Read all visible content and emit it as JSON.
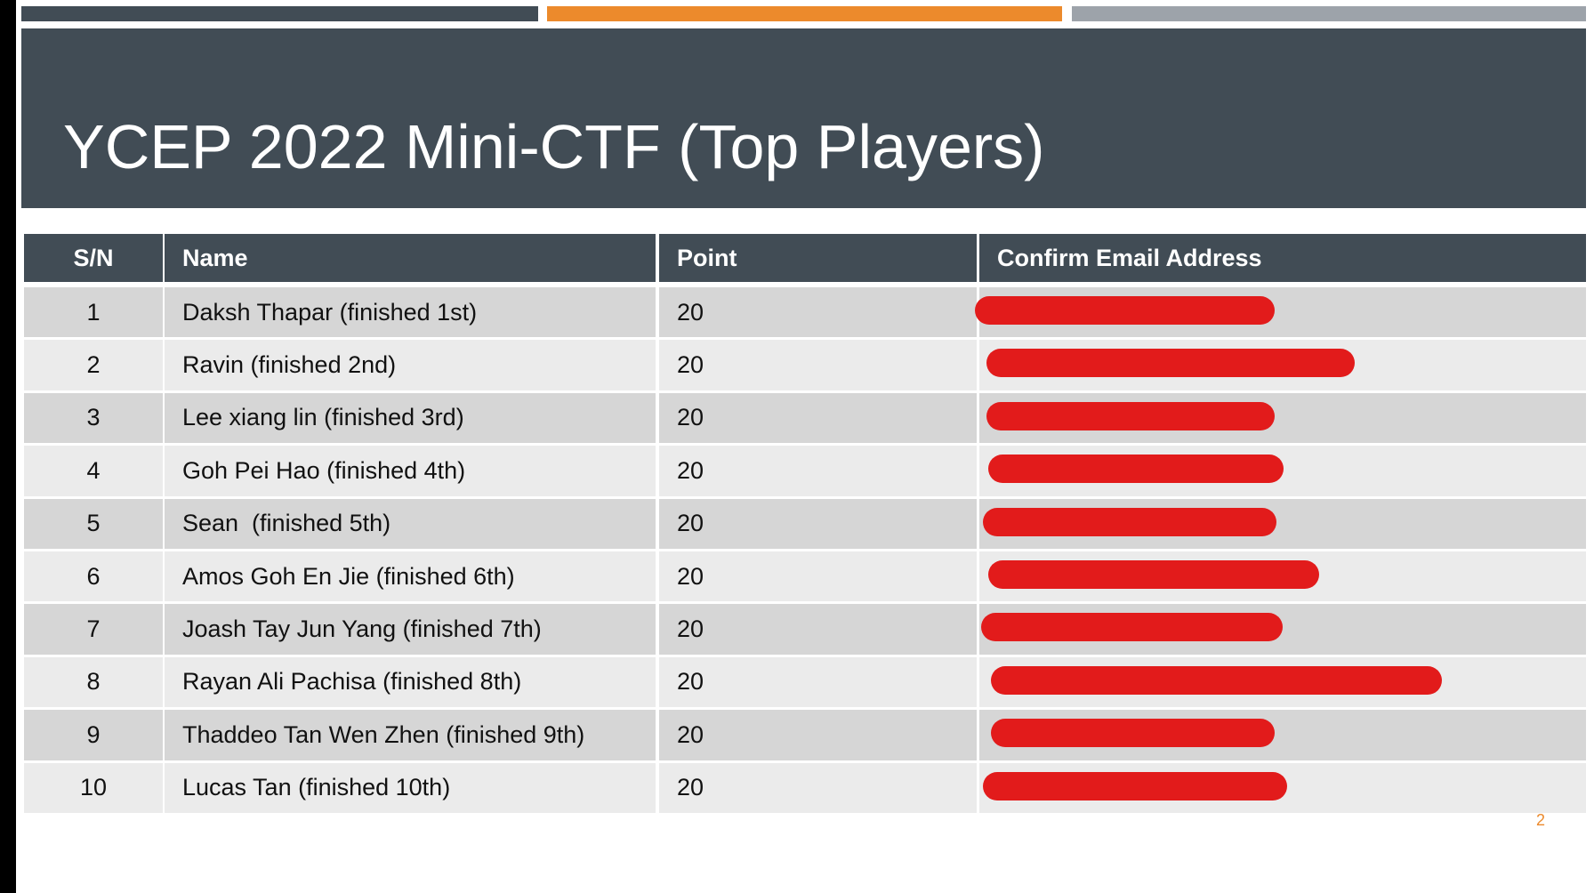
{
  "header": {
    "title": "YCEP 2022 Mini-CTF (Top Players)"
  },
  "table": {
    "columns": [
      "S/N",
      "Name",
      "Point",
      "Confirm Email Address"
    ],
    "rows": [
      [
        "1",
        "Daksh Thapar (finished 1st)",
        "20"
      ],
      [
        "2",
        "Ravin (finished 2nd)",
        "20"
      ],
      [
        "3",
        "Lee xiang lin (finished 3rd)",
        "20"
      ],
      [
        "4",
        "Goh Pei Hao (finished 4th)",
        "20"
      ],
      [
        "5",
        "Sean  (finished 5th)",
        "20"
      ],
      [
        "6",
        "Amos Goh En Jie (finished 6th)",
        "20"
      ],
      [
        "7",
        "Joash Tay Jun Yang (finished 7th)",
        "20"
      ],
      [
        "8",
        "Rayan Ali Pachisa (finished 8th)",
        "20"
      ],
      [
        "9",
        "Thaddeo Tan Wen Zhen (finished 9th)",
        "20"
      ],
      [
        "10",
        "Lucas Tan (finished 10th)",
        "20"
      ]
    ]
  },
  "page_number": "2"
}
